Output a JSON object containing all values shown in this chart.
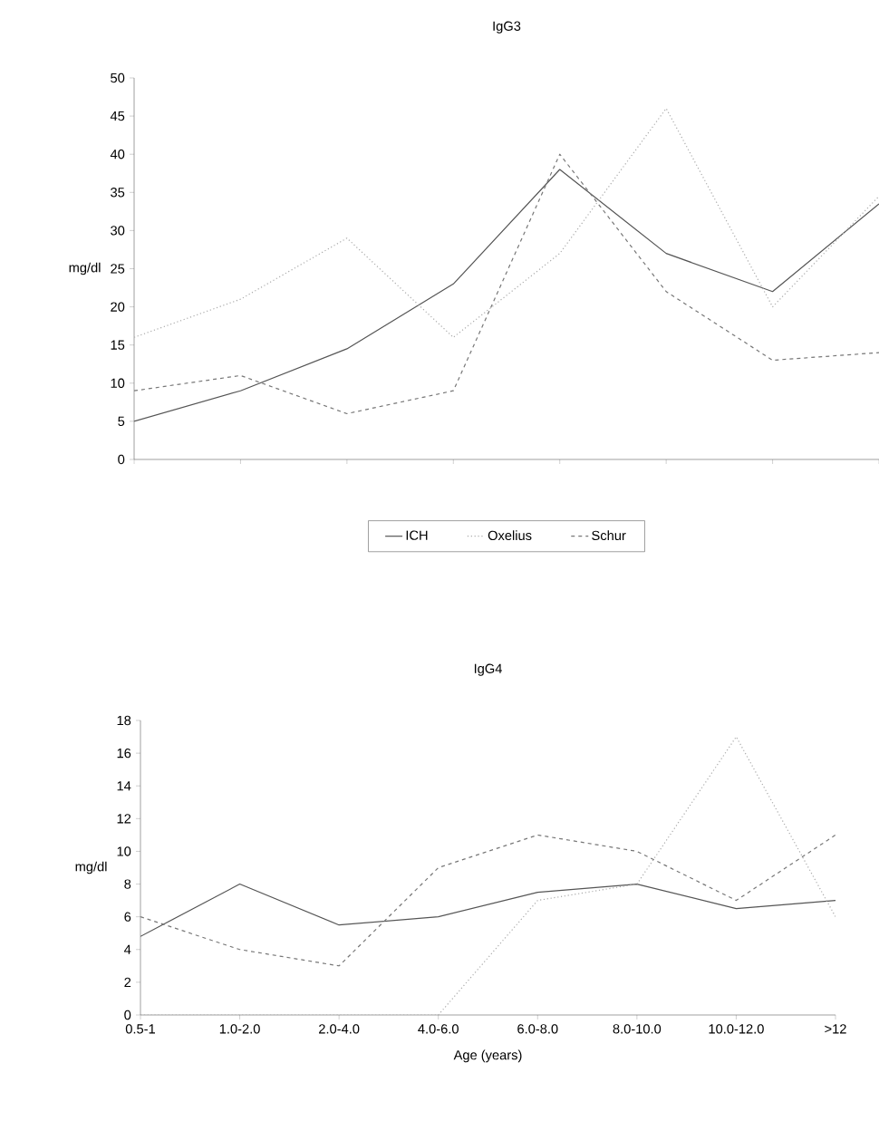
{
  "chart_data": [
    {
      "type": "line",
      "title": "IgG3",
      "ylabel": "mg/dl",
      "categories": [
        null,
        null,
        null,
        null,
        null,
        null,
        null,
        null
      ],
      "ylim": [
        0,
        50
      ],
      "yticks": [
        0,
        5,
        10,
        15,
        20,
        25,
        30,
        35,
        40,
        45,
        50
      ],
      "legend": "bottom",
      "grid": false,
      "series": [
        {
          "name": "ICH",
          "color": "#555555",
          "line_style": "solid",
          "values": [
            5,
            9,
            14.5,
            23,
            38,
            27,
            22,
            33.5
          ]
        },
        {
          "name": "Oxelius",
          "color": "#aaaaaa",
          "line_style": "dotted",
          "values": [
            16,
            21,
            29,
            16,
            27,
            46,
            20,
            34.5
          ]
        },
        {
          "name": "Schur",
          "color": "#777777",
          "line_style": "dashed",
          "values": [
            9,
            11,
            6,
            9,
            40,
            22,
            13,
            14
          ]
        }
      ]
    },
    {
      "type": "line",
      "title": "IgG4",
      "xlabel": "Age (years)",
      "ylabel": "mg/dl",
      "categories": [
        "0.5-1",
        "1.0-2.0",
        "2.0-4.0",
        "4.0-6.0",
        "6.0-8.0",
        "8.0-10.0",
        "10.0-12.0",
        ">12"
      ],
      "ylim": [
        0,
        18
      ],
      "yticks": [
        0,
        2,
        4,
        6,
        8,
        10,
        12,
        14,
        16,
        18
      ],
      "grid": false,
      "series": [
        {
          "color": "#555555",
          "line_style": "solid",
          "values": [
            4.8,
            8,
            5.5,
            6,
            7.5,
            8,
            6.5,
            7
          ]
        },
        {
          "color": "#aaaaaa",
          "line_style": "dotted",
          "values": [
            0,
            0,
            0,
            0,
            7,
            8,
            17,
            6
          ]
        },
        {
          "color": "#777777",
          "line_style": "dashed",
          "values": [
            6,
            4,
            3,
            9,
            11,
            10,
            7,
            11
          ]
        }
      ]
    }
  ]
}
